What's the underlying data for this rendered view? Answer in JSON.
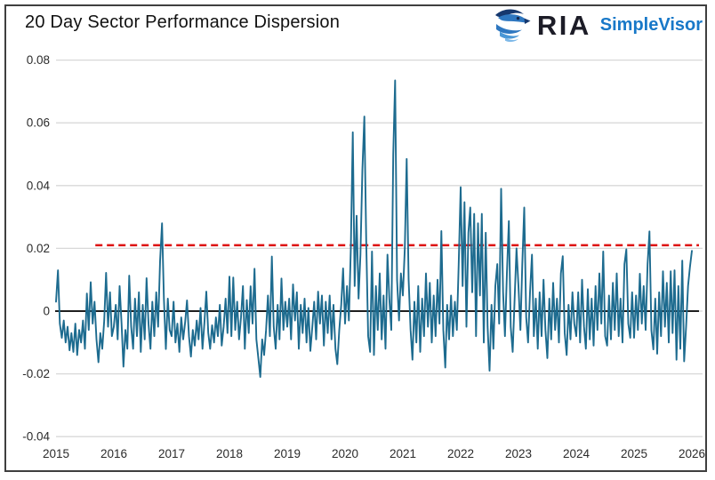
{
  "logo": {
    "brand": "RIA",
    "product": "SimpleVisor",
    "brand_color": "#1c1c27",
    "product_color": "#1878c8",
    "eagle_colors": [
      "#16386e",
      "#2e77c0",
      "#4a97d6",
      "#7db8e8"
    ]
  },
  "chart_data": {
    "type": "line",
    "title": "20 Day Sector Performance Dispersion",
    "xlabel": "",
    "ylabel": "",
    "xlim": [
      2015,
      2026.2
    ],
    "ylim": [
      -0.045,
      0.085
    ],
    "grid": "horizontal",
    "legend": "none",
    "x_ticks": [
      "2015",
      "2016",
      "2017",
      "2018",
      "2019",
      "2020",
      "2021",
      "2022",
      "2023",
      "2024",
      "2025",
      "2026"
    ],
    "y_ticks": [
      {
        "label": "0.08",
        "value": 0.08
      },
      {
        "label": "0.06",
        "value": 0.06
      },
      {
        "label": "0.04",
        "value": 0.04
      },
      {
        "label": "0.02",
        "value": 0.02
      },
      {
        "label": "0",
        "value": 0
      },
      {
        "label": "-0.02",
        "value": -0.02
      },
      {
        "label": "-0.04",
        "value": -0.04
      }
    ],
    "baseline": {
      "value": 0,
      "color": "#000000"
    },
    "reference_line": {
      "value": 0.021,
      "style": "dashed",
      "color": "#dd1111",
      "x_start": 2015.68,
      "x_end": 2026.12
    },
    "colors": {
      "line": "#1d6b8f",
      "grid": "#d8d8d8",
      "tick_text": "#2b2b2b"
    },
    "series": {
      "name": "20-day sector performance dispersion",
      "start": 2015.0,
      "step": 0.0333333,
      "values": [
        0.003,
        0.013,
        -0.004,
        -0.0085,
        -0.003,
        -0.01,
        -0.005,
        -0.0125,
        -0.007,
        -0.013,
        -0.004,
        -0.014,
        -0.006,
        -0.01,
        -0.003,
        -0.012,
        0.0056,
        -0.006,
        0.0092,
        -0.004,
        0.003,
        -0.009,
        -0.0163,
        -0.007,
        -0.012,
        -0.003,
        0.0122,
        -0.005,
        0.006,
        -0.008,
        -0.005,
        0.002,
        -0.009,
        0.008,
        -0.004,
        -0.0177,
        -0.006,
        -0.012,
        0.0113,
        -0.005,
        -0.012,
        0.004,
        -0.008,
        0.006,
        -0.013,
        0.002,
        -0.009,
        0.0105,
        -0.004,
        -0.012,
        0.003,
        -0.008,
        0.006,
        -0.005,
        0.016,
        0.028,
        0.004,
        -0.0121,
        0.004,
        -0.006,
        -0.008,
        0.003,
        -0.01,
        -0.004,
        -0.013,
        -0.002,
        -0.009,
        -0.0035,
        0.0034,
        -0.008,
        -0.0145,
        -0.006,
        -0.011,
        -0.003,
        -0.009,
        0.001,
        -0.012,
        -0.004,
        0.0062,
        -0.007,
        -0.012,
        -0.0045,
        -0.01,
        -0.002,
        -0.008,
        0.002,
        -0.011,
        -0.005,
        0.004,
        -0.007,
        0.011,
        -0.008,
        0.0107,
        -0.006,
        0.003,
        -0.009,
        -0.002,
        0.008,
        -0.012,
        0.0035,
        -0.007,
        0.0079,
        -0.004,
        0.0135,
        -0.009,
        -0.015,
        -0.021,
        -0.009,
        -0.014,
        -0.006,
        0.005,
        -0.008,
        0.0174,
        -0.005,
        -0.012,
        0.002,
        -0.009,
        0.0104,
        -0.006,
        0.003,
        -0.005,
        0.004,
        -0.009,
        0.0085,
        -0.003,
        0.006,
        -0.012,
        0.002,
        -0.007,
        0.004,
        -0.01,
        0.001,
        -0.0127,
        -0.005,
        0.003,
        -0.009,
        0.0062,
        -0.004,
        0.005,
        -0.011,
        0.003,
        -0.007,
        0.005,
        -0.009,
        0.002,
        -0.012,
        -0.0169,
        -0.006,
        0.002,
        0.0136,
        -0.004,
        0.008,
        -0.003,
        0.02,
        0.057,
        0.008,
        0.0304,
        0.004,
        0.018,
        0.045,
        0.062,
        0.0225,
        -0.008,
        -0.013,
        0.019,
        -0.014,
        0.008,
        -0.006,
        0.012,
        -0.009,
        0.005,
        -0.012,
        0.018,
        0.004,
        -0.006,
        0.05,
        0.0735,
        0.01,
        -0.003,
        0.012,
        0.005,
        0.02,
        0.0485,
        0.01,
        -0.006,
        -0.0155,
        0.003,
        -0.01,
        0.008,
        -0.013,
        0.004,
        -0.008,
        0.012,
        -0.005,
        0.009,
        -0.01,
        0.005,
        -0.008,
        0.01,
        -0.004,
        0.0255,
        -0.006,
        -0.018,
        0.002,
        -0.009,
        0.005,
        -0.008,
        0.003,
        -0.006,
        0.015,
        0.0395,
        0.008,
        0.0347,
        -0.005,
        0.025,
        0.033,
        0.006,
        0.031,
        -0.008,
        0.028,
        0.005,
        0.031,
        -0.01,
        0.025,
        -0.005,
        -0.019,
        0.002,
        -0.012,
        0.008,
        0.015,
        -0.004,
        0.039,
        0.006,
        -0.008,
        0.012,
        0.0287,
        -0.005,
        -0.013,
        0.004,
        0.02,
        0.008,
        -0.006,
        0.015,
        0.033,
        -0.002,
        -0.01,
        0.006,
        0.018,
        -0.008,
        0.004,
        -0.012,
        0.006,
        -0.008,
        0.01,
        -0.006,
        -0.015,
        0.004,
        -0.009,
        0.009,
        -0.006,
        0.004,
        -0.01,
        0.012,
        0.0175,
        -0.007,
        -0.014,
        0.002,
        -0.009,
        0.006,
        -0.004,
        -0.008,
        0.006,
        -0.01,
        0.01,
        -0.005,
        -0.012,
        0.007,
        -0.009,
        0.004,
        -0.011,
        0.008,
        -0.006,
        0.012,
        -0.004,
        0.019,
        -0.008,
        -0.011,
        0.005,
        -0.009,
        0.009,
        -0.006,
        0.012,
        -0.008,
        0.004,
        -0.01,
        0.015,
        0.0197,
        -0.004,
        -0.0085,
        0.006,
        -0.0085,
        0.005,
        -0.006,
        0.0119,
        -0.004,
        0.008,
        -0.006,
        0.015,
        0.0254,
        -0.0062,
        -0.0122,
        0.004,
        -0.0136,
        0.006,
        -0.008,
        0.0127,
        -0.005,
        0.009,
        -0.01,
        0.0127,
        -0.007,
        0.013,
        -0.0155,
        0.008,
        -0.012,
        0.0161,
        -0.016,
        -0.005,
        0.008,
        0.014,
        0.0192
      ]
    }
  }
}
